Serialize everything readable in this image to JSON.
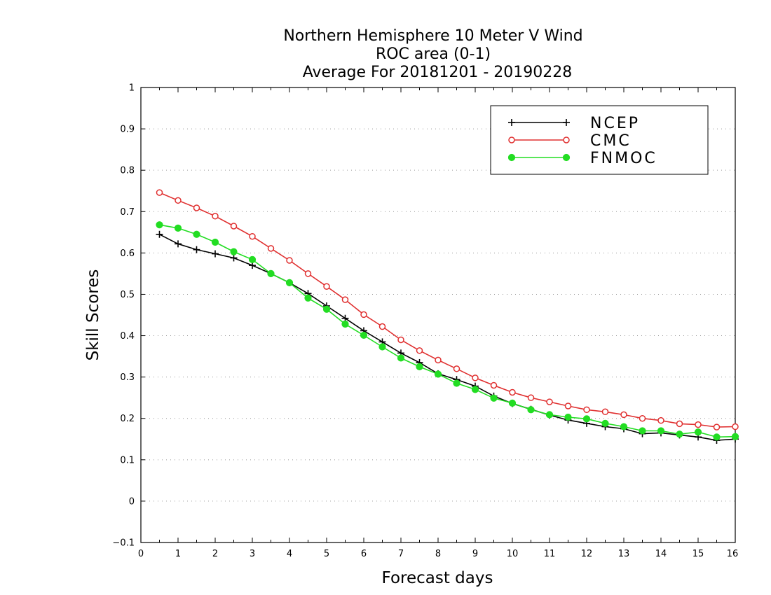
{
  "chart_data": {
    "type": "line",
    "title_lines": [
      "Northern Hemisphere 10 Meter V Wind",
      "ROC area (0-1)",
      "Average For 20181201 - 20190228"
    ],
    "xlabel": "Forecast days",
    "ylabel": "Skill Scores",
    "xlim": [
      0,
      16
    ],
    "ylim": [
      -0.1,
      1
    ],
    "x_ticks": [
      "0",
      "1",
      "2",
      "3",
      "4",
      "5",
      "6",
      "7",
      "8",
      "9",
      "10",
      "11",
      "12",
      "13",
      "14",
      "15",
      "16"
    ],
    "y_ticks": [
      "−0.1",
      "0",
      "0.1",
      "0.2",
      "0.3",
      "0.4",
      "0.5",
      "0.6",
      "0.7",
      "0.8",
      "0.9",
      "1"
    ],
    "y_tick_values": [
      -0.1,
      0,
      0.1,
      0.2,
      0.3,
      0.4,
      0.5,
      0.6,
      0.7,
      0.8,
      0.9,
      1
    ],
    "grid": "horizontal dotted",
    "legend_position": "top-right",
    "x": [
      0.5,
      1,
      1.5,
      2,
      2.5,
      3,
      3.5,
      4,
      4.5,
      5,
      5.5,
      6,
      6.5,
      7,
      7.5,
      8,
      8.5,
      9,
      9.5,
      10,
      10.5,
      11,
      11.5,
      12,
      12.5,
      13,
      13.5,
      14,
      14.5,
      15,
      15.5,
      16
    ],
    "series": [
      {
        "name": "NCEP",
        "color": "#000000",
        "marker": "plus",
        "values": [
          0.645,
          0.622,
          0.608,
          0.598,
          0.588,
          0.57,
          0.55,
          0.528,
          0.502,
          0.472,
          0.442,
          0.412,
          0.385,
          0.358,
          0.335,
          0.308,
          0.294,
          0.278,
          0.254,
          0.236,
          0.222,
          0.208,
          0.196,
          0.188,
          0.18,
          0.175,
          0.163,
          0.165,
          0.16,
          0.155,
          0.147,
          0.15
        ]
      },
      {
        "name": "CMC",
        "color": "#e03030",
        "marker": "open-circle",
        "values": [
          0.746,
          0.727,
          0.709,
          0.689,
          0.665,
          0.64,
          0.611,
          0.582,
          0.55,
          0.519,
          0.487,
          0.451,
          0.422,
          0.39,
          0.364,
          0.341,
          0.32,
          0.298,
          0.28,
          0.263,
          0.25,
          0.24,
          0.23,
          0.221,
          0.216,
          0.209,
          0.2,
          0.195,
          0.187,
          0.185,
          0.179,
          0.18
        ]
      },
      {
        "name": "FNMOC",
        "color": "#22dd22",
        "marker": "filled-circle",
        "values": [
          0.668,
          0.66,
          0.645,
          0.626,
          0.603,
          0.584,
          0.55,
          0.528,
          0.491,
          0.464,
          0.428,
          0.401,
          0.373,
          0.346,
          0.325,
          0.307,
          0.285,
          0.27,
          0.249,
          0.237,
          0.221,
          0.209,
          0.203,
          0.199,
          0.188,
          0.18,
          0.17,
          0.17,
          0.162,
          0.167,
          0.155,
          0.156
        ]
      }
    ]
  }
}
